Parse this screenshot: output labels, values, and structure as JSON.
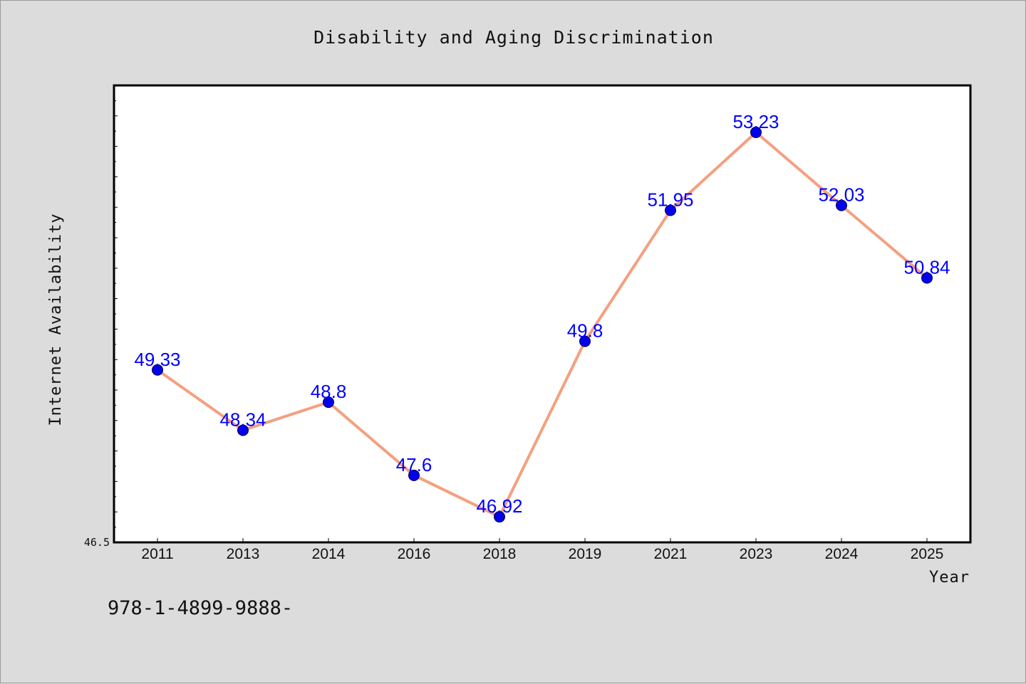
{
  "chart_data": {
    "type": "line",
    "title": "Disability and Aging Discrimination",
    "xlabel": "Year",
    "ylabel": "Internet Availability",
    "categories": [
      "2011",
      "2013",
      "2014",
      "2016",
      "2018",
      "2019",
      "2021",
      "2023",
      "2024",
      "2025"
    ],
    "series": [
      {
        "values": [
          49.33,
          48.34,
          48.8,
          47.6,
          46.92,
          49.8,
          51.95,
          53.23,
          52.03,
          50.84
        ],
        "data_labels": [
          "49.33",
          "48.34",
          "48.8",
          "47.6",
          "46.92",
          "49.8",
          "51.95",
          "53.23",
          "52.03",
          "50.84"
        ]
      }
    ],
    "ylim": [
      46.5,
      54.0
    ],
    "y_tick_labels": [
      "46.5"
    ],
    "grid": false,
    "legend": "none",
    "colors": {
      "line": "#f4a080",
      "marker": "#0000ee",
      "data_label": "#0000ff",
      "plot_background": "#ffffff",
      "figure_background": "#dcdcdc"
    }
  },
  "footer": {
    "text": "978-1-4899-9888-"
  }
}
